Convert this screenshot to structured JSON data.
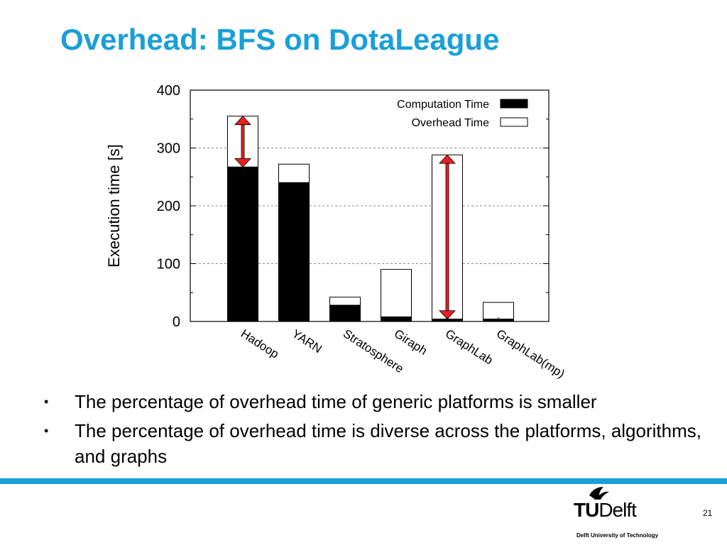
{
  "slide": {
    "title": "Overhead: BFS on DotaLeague",
    "bullets": [
      "The percentage of overhead time of generic platforms is smaller",
      "The percentage of overhead time is diverse across the platforms, algorithms, and graphs"
    ],
    "page_number": "21"
  },
  "logo": {
    "tu": "TU",
    "delft": "Delft",
    "caption": "Delft University of Technology"
  },
  "colors": {
    "title": "#1a9fd9",
    "footer_bar": "#1a9fd9",
    "computation_bar": "#000000",
    "overhead_bar": "#ffffff",
    "arrow": "#e8201f"
  },
  "chart_data": {
    "type": "bar",
    "stacked": true,
    "ylabel": "Execution time [s]",
    "ylim": [
      0,
      400
    ],
    "yticks": [
      0,
      100,
      200,
      300,
      400
    ],
    "grid": true,
    "legend_position": "top-right",
    "categories": [
      "Hadoop",
      "YARN",
      "Stratosphere",
      "Giraph",
      "GraphLab",
      "GraphLab(mp)"
    ],
    "series": [
      {
        "name": "Computation Time",
        "values": [
          267,
          240,
          28,
          8,
          4,
          4
        ]
      },
      {
        "name": "Overhead Time",
        "values": [
          88,
          32,
          14,
          82,
          284,
          29
        ]
      }
    ],
    "annotations": [
      {
        "type": "double-arrow",
        "category": "Hadoop",
        "from": 267,
        "to": 355
      },
      {
        "type": "double-arrow",
        "category": "GraphLab",
        "from": 4,
        "to": 288
      }
    ]
  }
}
